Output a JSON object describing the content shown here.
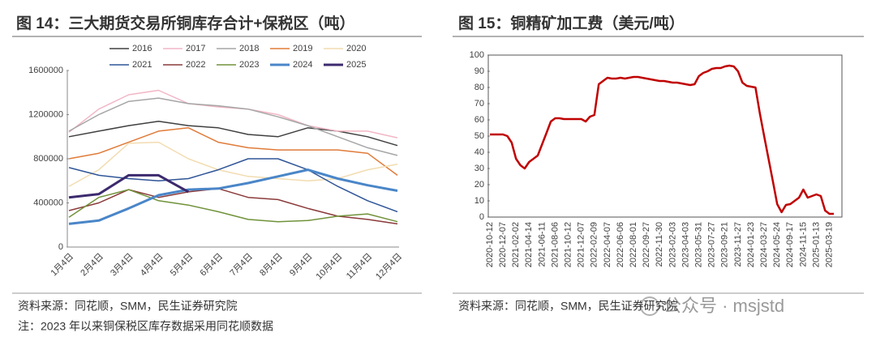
{
  "chart_data": [
    {
      "type": "line",
      "title": "图 14：三大期货交易所铜库存合计+保税区（吨）",
      "categories": [
        "1月4日",
        "2月4日",
        "3月4日",
        "4月4日",
        "5月4日",
        "6月4日",
        "7月4日",
        "8月4日",
        "9月4日",
        "10月4日",
        "11月4日",
        "12月4日"
      ],
      "series": [
        {
          "name": "2016",
          "color": "#404040",
          "line_width": 1.5,
          "values": [
            1000000,
            1050000,
            1100000,
            1140000,
            1100000,
            1080000,
            1020000,
            1000000,
            1080000,
            1050000,
            1000000,
            920000
          ]
        },
        {
          "name": "2017",
          "color": "#f2b6c6",
          "line_width": 1.5,
          "values": [
            1040000,
            1250000,
            1380000,
            1420000,
            1300000,
            1270000,
            1250000,
            1200000,
            1100000,
            1050000,
            1050000,
            990000
          ]
        },
        {
          "name": "2018",
          "color": "#a6a6a6",
          "line_width": 1.5,
          "values": [
            1050000,
            1200000,
            1320000,
            1350000,
            1300000,
            1280000,
            1250000,
            1180000,
            1100000,
            1000000,
            900000,
            830000
          ]
        },
        {
          "name": "2019",
          "color": "#e07b39",
          "line_width": 1.5,
          "values": [
            800000,
            850000,
            950000,
            1050000,
            1080000,
            950000,
            900000,
            880000,
            880000,
            880000,
            850000,
            650000
          ]
        },
        {
          "name": "2020",
          "color": "#f2dcb0",
          "line_width": 1.5,
          "values": [
            550000,
            700000,
            940000,
            950000,
            800000,
            700000,
            640000,
            620000,
            600000,
            620000,
            700000,
            750000
          ]
        },
        {
          "name": "2021",
          "color": "#2f5597",
          "line_width": 1.5,
          "values": [
            720000,
            650000,
            620000,
            600000,
            620000,
            700000,
            800000,
            800000,
            700000,
            550000,
            420000,
            320000
          ]
        },
        {
          "name": "2022",
          "color": "#8b3a3a",
          "line_width": 1.5,
          "values": [
            330000,
            400000,
            520000,
            450000,
            500000,
            530000,
            450000,
            430000,
            350000,
            280000,
            250000,
            210000
          ]
        },
        {
          "name": "2023",
          "color": "#70923a",
          "line_width": 1.5,
          "values": [
            270000,
            450000,
            520000,
            420000,
            380000,
            320000,
            250000,
            230000,
            240000,
            280000,
            300000,
            230000
          ]
        },
        {
          "name": "2024",
          "color": "#4a86c8",
          "line_width": 3,
          "values": [
            210000,
            240000,
            350000,
            470000,
            520000,
            530000,
            580000,
            640000,
            700000,
            620000,
            560000,
            510000
          ]
        },
        {
          "name": "2025",
          "color": "#3c2a6e",
          "line_width": 3,
          "values": [
            450000,
            480000,
            650000,
            650000,
            500000,
            null,
            null,
            null,
            null,
            null,
            null,
            null
          ]
        }
      ],
      "ylim": [
        0,
        1600000
      ],
      "yticks": [
        0,
        400000,
        800000,
        1200000,
        1600000
      ],
      "source": "资料来源：同花顺，SMM，民生证券研究院",
      "note": "注：2023 年以来铜保税区库存数据采用同花顺数据"
    },
    {
      "type": "line",
      "title": "图 15：铜精矿加工费（美元/吨）",
      "categories": [
        "2020-10-12",
        null,
        null,
        "2020-12-07",
        null,
        null,
        "2021-02-02",
        null,
        null,
        "2021-04-14",
        null,
        null,
        "2021-06-11",
        null,
        null,
        "2021-08-06",
        null,
        null,
        "2021-10-12",
        null,
        null,
        "2021-12-07",
        null,
        null,
        "2022-02-09",
        null,
        null,
        "2022-04-07",
        null,
        null,
        "2022-06-06",
        null,
        null,
        "2022-08-01",
        null,
        null,
        "2022-09-27",
        null,
        null,
        "2022-11-30",
        null,
        null,
        "2023-02-03",
        null,
        null,
        "2023-04-03",
        null,
        null,
        "2023-05-31",
        null,
        null,
        "2023-07-27",
        null,
        null,
        "2023-09-21",
        null,
        null,
        "2023-11-27",
        null,
        null,
        "2024-01-23",
        null,
        null,
        "2024-03-27",
        null,
        null,
        "2024-05-24",
        null,
        null,
        "2024-09-17",
        null,
        null,
        "2024-11-15",
        null,
        null,
        "2025-01-13",
        null,
        null,
        "2025-03-19",
        null
      ],
      "series": [
        {
          "name": "铜精矿加工费",
          "color": "#c00000",
          "line_width": 2.5,
          "values": [
            51,
            51,
            51,
            51,
            50,
            46,
            36,
            32,
            30,
            34,
            36,
            38,
            45,
            52,
            59,
            61,
            61,
            60.5,
            60.5,
            60.5,
            60.5,
            60.5,
            59,
            62,
            63,
            82,
            84,
            86,
            85.5,
            85.5,
            86,
            85.5,
            86,
            86.5,
            86.5,
            86,
            85.5,
            85,
            84.5,
            84,
            84,
            83.5,
            83,
            83,
            82.5,
            82,
            81.5,
            82,
            87,
            89,
            90,
            91.5,
            92,
            92,
            93,
            93.5,
            93,
            90,
            83,
            81,
            80.5,
            80,
            64,
            50,
            36,
            22,
            8,
            3,
            7.5,
            8,
            10,
            12,
            17,
            12,
            13,
            14,
            13,
            4,
            2,
            2
          ]
        }
      ],
      "ylim": [
        0,
        100
      ],
      "yticks": [
        0,
        10,
        20,
        30,
        40,
        50,
        60,
        70,
        80,
        90,
        100
      ],
      "source": "资料来源：同花顺，SMM，民生证券研究院"
    }
  ],
  "watermark": "公众号 · msjstd"
}
